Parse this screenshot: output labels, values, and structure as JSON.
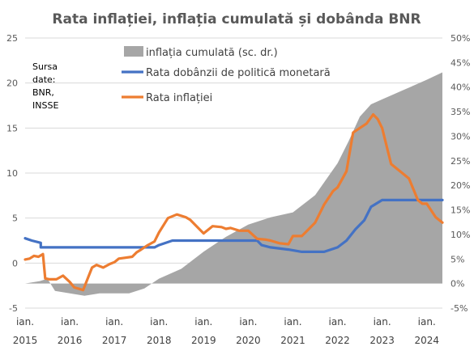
{
  "chart_data": {
    "type": "line",
    "title": "Rata inflației, inflația cumulată și dobânda BNR",
    "source_note": [
      "Sursa",
      "date:",
      "BNR,",
      "INSSE"
    ],
    "y_left": {
      "ticks": [
        "-5",
        "0",
        "5",
        "10",
        "15",
        "20",
        "25"
      ],
      "range": [
        -5,
        25
      ]
    },
    "y_right": {
      "ticks": [
        "-5%",
        "0%",
        "5%",
        "10%",
        "15%",
        "20%",
        "25%",
        "30%",
        "35%",
        "40%",
        "45%",
        "50%"
      ],
      "range": [
        -5,
        50
      ]
    },
    "x_ticks": [
      {
        "line1": "ian.",
        "line2": "2015",
        "t": 2015.0
      },
      {
        "line1": "ian.",
        "line2": "2016",
        "t": 2016.0
      },
      {
        "line1": "ian.",
        "line2": "2017",
        "t": 2017.0
      },
      {
        "line1": "ian.",
        "line2": "2018",
        "t": 2018.0
      },
      {
        "line1": "ian.",
        "line2": "2019",
        "t": 2019.0
      },
      {
        "line1": "ian.",
        "line2": "2020",
        "t": 2020.0
      },
      {
        "line1": "ian.",
        "line2": "2021",
        "t": 2021.0
      },
      {
        "line1": "ian.",
        "line2": "2022",
        "t": 2022.0
      },
      {
        "line1": "ian.",
        "line2": "2023",
        "t": 2023.0
      },
      {
        "line1": "ian.",
        "line2": "2024",
        "t": 2024.0
      }
    ],
    "x_range": [
      2015.0,
      2024.35
    ],
    "colors": {
      "cumulative": "#a6a6a6",
      "policy_rate": "#4472c4",
      "inflation": "#ed7d31"
    },
    "series": [
      {
        "name": "inflația cumulată (sc. dr.)",
        "axis": "right",
        "kind": "area",
        "x": [
          2015.0,
          2015.33,
          2015.5,
          2015.67,
          2016.0,
          2016.33,
          2016.67,
          2017.0,
          2017.33,
          2017.67,
          2018.0,
          2018.5,
          2019.0,
          2019.5,
          2020.0,
          2020.5,
          2021.0,
          2021.5,
          2022.0,
          2022.25,
          2022.5,
          2022.75,
          2023.0,
          2023.5,
          2024.0,
          2024.35
        ],
        "values": [
          0,
          0.5,
          1.0,
          -1.5,
          -2.0,
          -2.5,
          -2.0,
          -2.0,
          -2.0,
          -1.0,
          1.0,
          3.0,
          6.5,
          9.5,
          12.0,
          13.5,
          14.5,
          18.0,
          24.5,
          29.0,
          34.0,
          36.5,
          37.5,
          39.5,
          41.5,
          43.0
        ]
      },
      {
        "name": "Rata dobânzii de politică monetară",
        "axis": "left",
        "kind": "line",
        "x": [
          2015.0,
          2015.15,
          2015.35,
          2015.35,
          2017.9,
          2018.0,
          2018.3,
          2020.2,
          2020.3,
          2020.5,
          2020.9,
          2021.2,
          2021.7,
          2021.85,
          2022.0,
          2022.2,
          2022.4,
          2022.6,
          2022.75,
          2023.0,
          2023.5,
          2024.0,
          2024.35
        ],
        "values": [
          2.75,
          2.5,
          2.25,
          1.75,
          1.75,
          2.0,
          2.5,
          2.5,
          2.0,
          1.75,
          1.5,
          1.25,
          1.25,
          1.5,
          1.75,
          2.5,
          3.75,
          4.75,
          6.25,
          7.0,
          7.0,
          7.0,
          7.0
        ]
      },
      {
        "name": "Rata inflației",
        "axis": "left",
        "kind": "line",
        "x": [
          2015.0,
          2015.1,
          2015.2,
          2015.3,
          2015.4,
          2015.45,
          2015.55,
          2015.7,
          2015.85,
          2016.0,
          2016.1,
          2016.3,
          2016.5,
          2016.6,
          2016.75,
          2016.9,
          2017.0,
          2017.1,
          2017.25,
          2017.4,
          2017.5,
          2017.6,
          2017.75,
          2017.9,
          2018.0,
          2018.2,
          2018.4,
          2018.6,
          2018.7,
          2018.8,
          2019.0,
          2019.2,
          2019.4,
          2019.5,
          2019.6,
          2019.8,
          2020.0,
          2020.2,
          2020.4,
          2020.5,
          2020.7,
          2020.9,
          2021.0,
          2021.2,
          2021.3,
          2021.5,
          2021.7,
          2021.9,
          2022.0,
          2022.2,
          2022.35,
          2022.5,
          2022.65,
          2022.8,
          2022.9,
          2023.0,
          2023.2,
          2023.4,
          2023.6,
          2023.8,
          2023.9,
          2024.0,
          2024.2,
          2024.35
        ],
        "values": [
          0.4,
          0.5,
          0.8,
          0.7,
          1.0,
          -1.7,
          -1.8,
          -1.8,
          -1.4,
          -2.1,
          -2.7,
          -3.0,
          -0.5,
          -0.2,
          -0.5,
          -0.1,
          0.1,
          0.5,
          0.6,
          0.7,
          1.2,
          1.5,
          2.0,
          2.4,
          3.4,
          5.0,
          5.4,
          5.1,
          4.8,
          4.3,
          3.3,
          4.1,
          4.0,
          3.8,
          3.9,
          3.6,
          3.6,
          2.7,
          2.6,
          2.5,
          2.2,
          2.1,
          3.0,
          3.0,
          3.5,
          4.5,
          6.5,
          8.0,
          8.4,
          10.2,
          14.5,
          15.0,
          15.5,
          16.5,
          16.0,
          15.0,
          11.0,
          10.2,
          9.4,
          7.0,
          6.6,
          6.6,
          5.1,
          4.5
        ]
      }
    ]
  }
}
